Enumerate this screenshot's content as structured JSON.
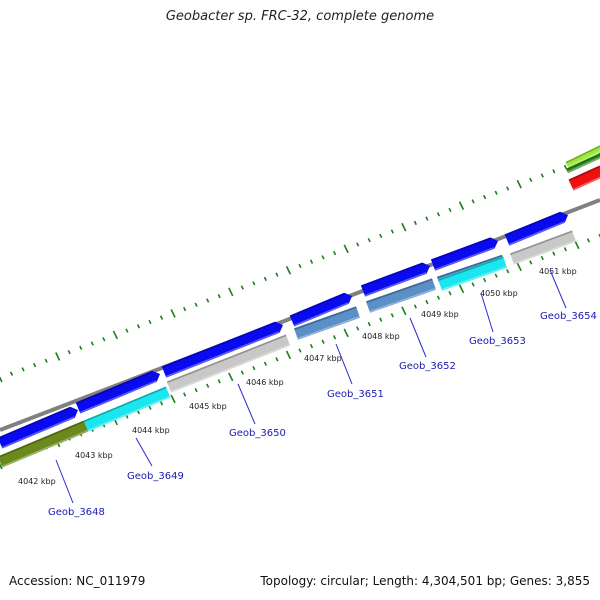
{
  "title": "Geobacter sp. FRC-32, complete genome",
  "footer": {
    "accession": "Accession: NC_011979",
    "summary": "Topology: circular; Length: 4,304,501 bp; Genes: 3,855"
  },
  "colors": {
    "backbone": "#808080",
    "ticks": "#1a7f1a",
    "cds_strand": "#0a0af0",
    "locus_label": "#1a1ab0",
    "callout_line": "#2a2ad0"
  },
  "scale": {
    "unit": "kbp",
    "labels": [
      "4042 kbp",
      "4043 kbp",
      "4044 kbp",
      "4045 kbp",
      "4046 kbp",
      "4047 kbp",
      "4048 kbp",
      "4049 kbp",
      "4050 kbp",
      "4051 kbp"
    ]
  },
  "tracks": {
    "top_right": [
      "#9bea3c",
      "#2e8b1e",
      "#ee1111"
    ],
    "outer": [
      "#0a0af0",
      "#0a0af0",
      "#0a0af0",
      "#0a0af0",
      "#0a0af0",
      "#0a0af0",
      "#0a0af0"
    ],
    "inner": [
      "#6b8a1e",
      "#19e6ef",
      "#c8c8c8",
      "#5a8fc8",
      "#5a8fc8",
      "#5a8fc8",
      "#19e6ef",
      "#c8c8c8"
    ]
  },
  "genes": [
    {
      "locus": "Geob_3648"
    },
    {
      "locus": "Geob_3649"
    },
    {
      "locus": "Geob_3650"
    },
    {
      "locus": "Geob_3651"
    },
    {
      "locus": "Geob_3652"
    },
    {
      "locus": "Geob_3653"
    },
    {
      "locus": "Geob_3654"
    }
  ]
}
